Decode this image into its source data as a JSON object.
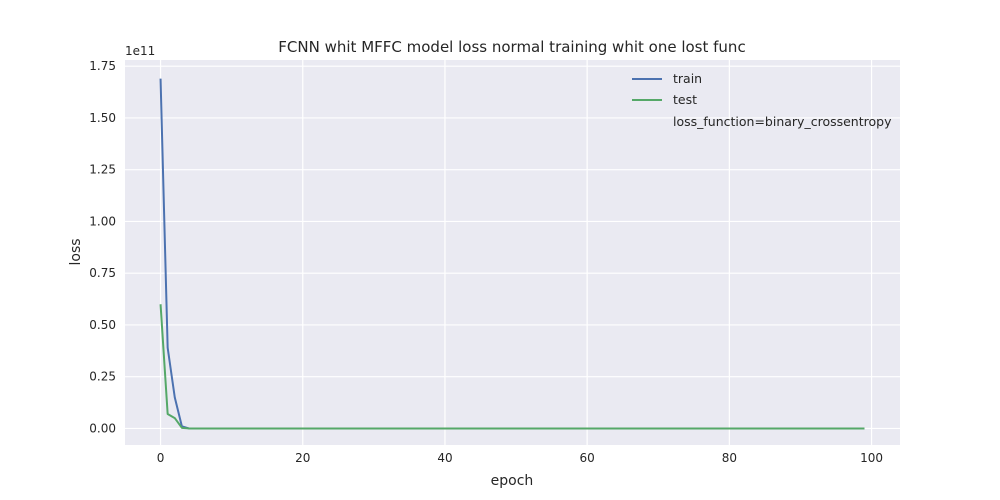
{
  "chart_data": {
    "type": "line",
    "title": "FCNN whit MFFC model loss normal training whit one lost func",
    "xlabel": "epoch",
    "ylabel": "loss",
    "y_offset_label": "1e11",
    "y_scale": 100000000000,
    "xlim": [
      -5,
      104
    ],
    "ylim": [
      -0.08,
      1.78
    ],
    "xticks": [
      0,
      20,
      40,
      60,
      80,
      100
    ],
    "yticks": [
      0.0,
      0.25,
      0.5,
      0.75,
      1.0,
      1.25,
      1.5,
      1.75
    ],
    "xtick_labels": [
      "0",
      "20",
      "40",
      "60",
      "80",
      "100"
    ],
    "ytick_labels": [
      "0.00",
      "0.25",
      "0.50",
      "0.75",
      "1.00",
      "1.25",
      "1.50",
      "1.75"
    ],
    "grid": true,
    "legend_position": "top-right",
    "legend_note": "loss_function=binary_crossentropy",
    "series": [
      {
        "name": "train",
        "color": "#4c72b0",
        "x": [
          0,
          1,
          2,
          3,
          4,
          99
        ],
        "y": [
          1.69,
          0.39,
          0.15,
          0.01,
          0.0,
          0.0
        ]
      },
      {
        "name": "test",
        "color": "#55a868",
        "x": [
          0,
          1,
          2,
          3,
          4,
          99
        ],
        "y": [
          0.6,
          0.07,
          0.05,
          0.003,
          0.0,
          0.0
        ]
      }
    ]
  },
  "colors": {
    "plot_background": "#eaeaf2",
    "grid": "#ffffff",
    "text": "#262626"
  }
}
